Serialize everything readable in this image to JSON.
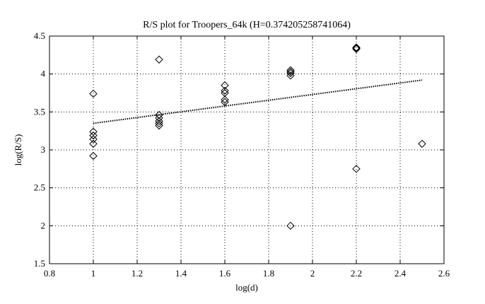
{
  "chart_data": {
    "type": "scatter",
    "title": "R/S plot for Troopers_64k (H=0.374205258741064)",
    "xlabel": "log(d)",
    "ylabel": "log(R/S)",
    "xlim": [
      0.8,
      2.6
    ],
    "ylim": [
      1.5,
      4.5
    ],
    "xticks": [
      "0.8",
      "1",
      "1.2",
      "1.4",
      "1.6",
      "1.8",
      "2",
      "2.2",
      "2.4",
      "2.6"
    ],
    "yticks": [
      "1.5",
      "2",
      "2.5",
      "3",
      "3.5",
      "4",
      "4.5"
    ],
    "grid": true,
    "legend": "none",
    "marker": "diamond",
    "points": [
      {
        "x": 1.0,
        "y": 3.74
      },
      {
        "x": 1.0,
        "y": 3.24
      },
      {
        "x": 1.0,
        "y": 3.19
      },
      {
        "x": 1.0,
        "y": 3.14
      },
      {
        "x": 1.0,
        "y": 3.08
      },
      {
        "x": 1.0,
        "y": 2.92
      },
      {
        "x": 1.3,
        "y": 4.19
      },
      {
        "x": 1.3,
        "y": 3.46
      },
      {
        "x": 1.3,
        "y": 3.42
      },
      {
        "x": 1.3,
        "y": 3.38
      },
      {
        "x": 1.3,
        "y": 3.35
      },
      {
        "x": 1.3,
        "y": 3.32
      },
      {
        "x": 1.6,
        "y": 3.85
      },
      {
        "x": 1.6,
        "y": 3.78
      },
      {
        "x": 1.6,
        "y": 3.75
      },
      {
        "x": 1.6,
        "y": 3.66
      },
      {
        "x": 1.6,
        "y": 3.63
      },
      {
        "x": 1.9,
        "y": 4.05
      },
      {
        "x": 1.9,
        "y": 4.03
      },
      {
        "x": 1.9,
        "y": 4.01
      },
      {
        "x": 1.9,
        "y": 3.98
      },
      {
        "x": 1.9,
        "y": 2.0
      },
      {
        "x": 2.2,
        "y": 4.35
      },
      {
        "x": 2.2,
        "y": 4.34
      },
      {
        "x": 2.2,
        "y": 4.33
      },
      {
        "x": 2.2,
        "y": 2.75
      },
      {
        "x": 2.5,
        "y": 3.08
      }
    ],
    "fit_line": {
      "style": "dotted",
      "x": [
        1.0,
        2.5
      ],
      "y": [
        3.35,
        3.92
      ]
    }
  }
}
